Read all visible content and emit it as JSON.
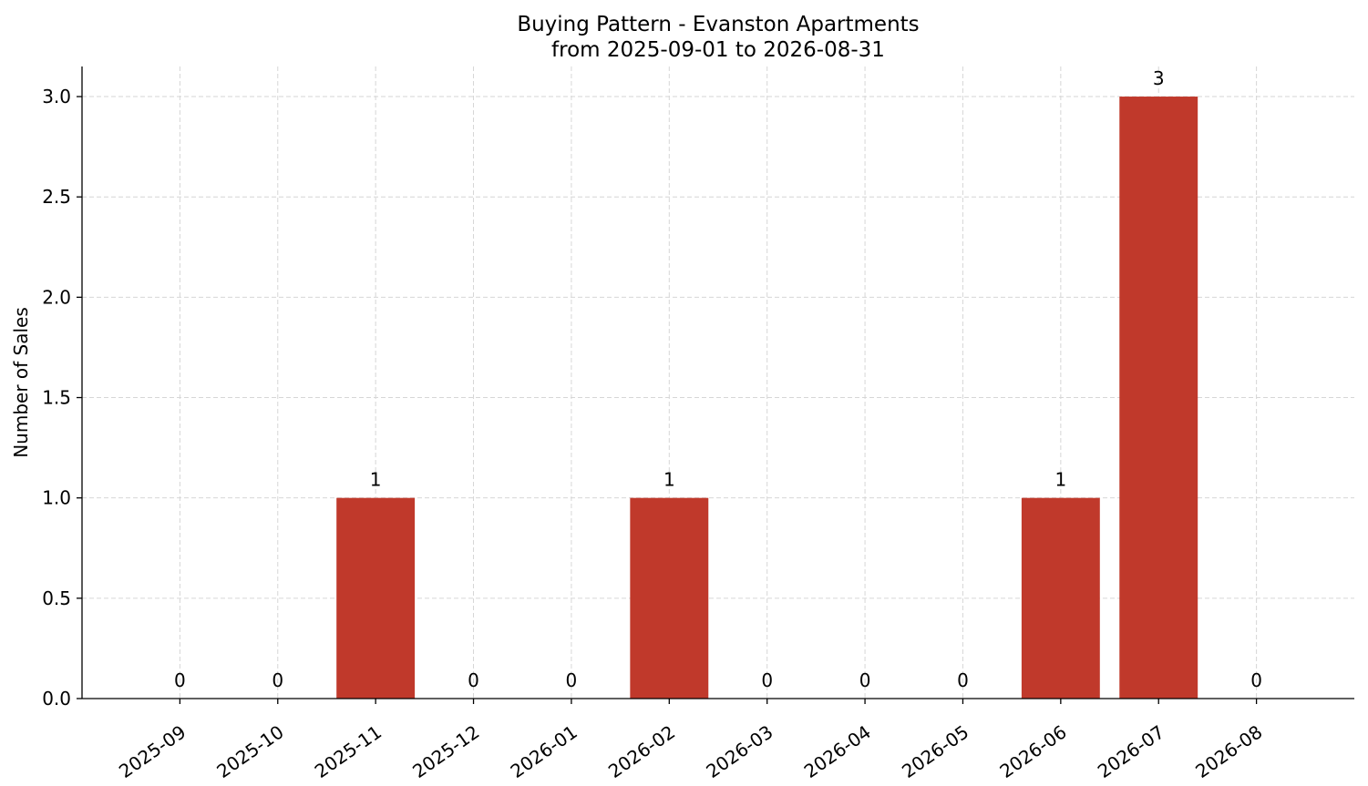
{
  "chart_data": {
    "type": "bar",
    "title": "Buying Pattern - Evanston Apartments",
    "subtitle": "from 2025-09-01 to 2026-08-31",
    "y_label": "Number of Sales",
    "categories": [
      "2025-09",
      "2025-10",
      "2025-11",
      "2025-12",
      "2026-01",
      "2026-02",
      "2026-03",
      "2026-04",
      "2026-05",
      "2026-06",
      "2026-07",
      "2026-08"
    ],
    "values": [
      0,
      0,
      1,
      0,
      0,
      1,
      0,
      0,
      0,
      1,
      3,
      0
    ],
    "color": "#c0392b",
    "ylim": [
      0,
      3.15
    ],
    "yticks": [
      {
        "value": 0,
        "label": "0.0"
      },
      0.5,
      {
        "value": 1,
        "label": "1.0"
      },
      1.5,
      {
        "value": 2,
        "label": "2.0"
      },
      2.5,
      {
        "value": 3,
        "label": "3.0"
      }
    ],
    "grid": true
  }
}
